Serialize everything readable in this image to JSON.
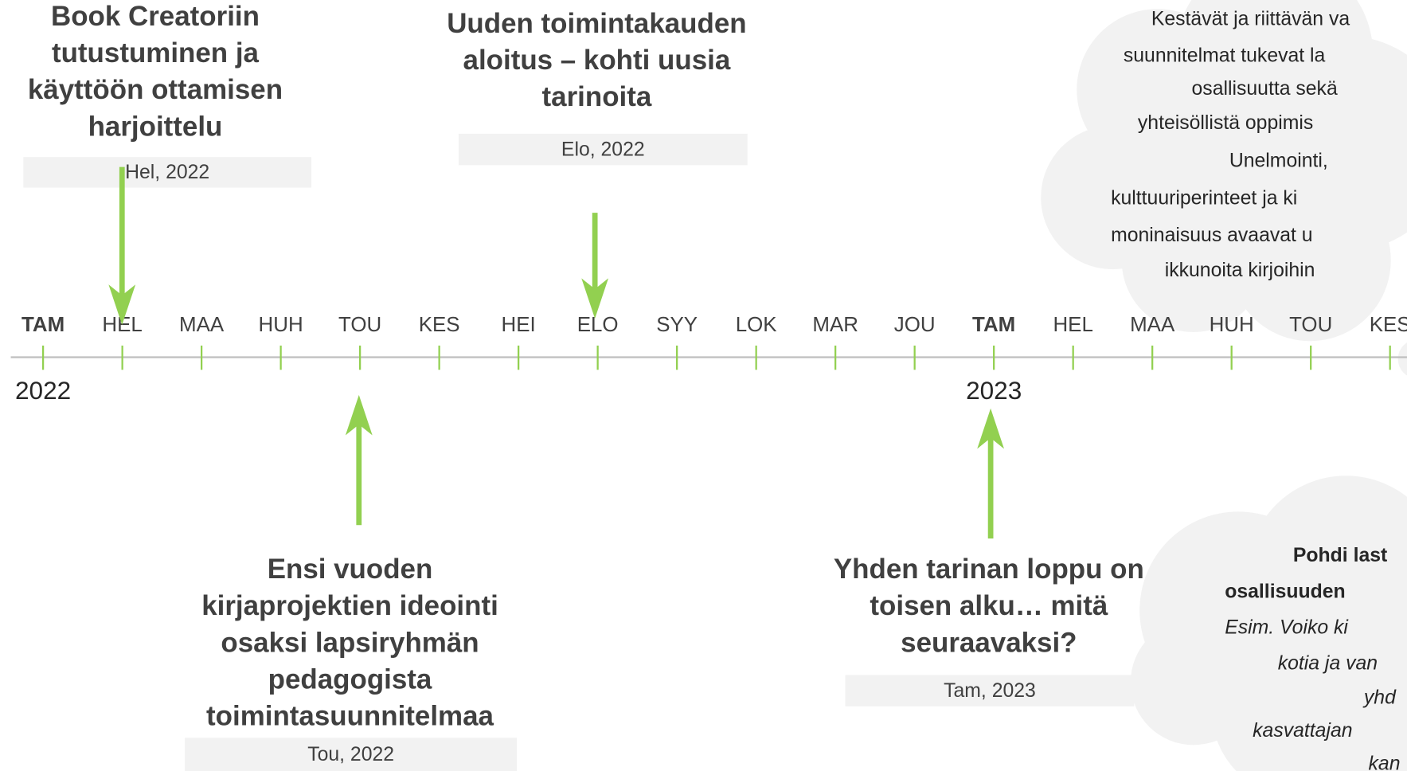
{
  "months": [
    "TAM",
    "HEL",
    "MAA",
    "HUH",
    "TOU",
    "KES",
    "HEI",
    "ELO",
    "SYY",
    "LOK",
    "MAR",
    "JOU",
    "TAM",
    "HEL",
    "MAA",
    "HUH",
    "TOU",
    "KES"
  ],
  "years": [
    "2022",
    "2023"
  ],
  "events": [
    {
      "title": [
        "Book Creatoriin",
        "tutustuminen ja",
        "käyttöön ottamisen",
        "harjoittelu"
      ],
      "date": "Hel, 2022"
    },
    {
      "title": [
        "Uuden toimintakauden",
        "aloitus – kohti uusia",
        "tarinoita"
      ],
      "date": "Elo, 2022"
    },
    {
      "title": [
        "Ensi vuoden",
        "kirjaprojektien ideointi",
        "osaksi lapsiryhmän",
        "pedagogista",
        "toimintasuunnitelmaa"
      ],
      "date": "Tou, 2022"
    },
    {
      "title": [
        "Yhden tarinan loppu on",
        "toisen alku… mitä",
        "seuraavaksi?"
      ],
      "date": "Tam, 2023"
    }
  ],
  "clouds": [
    {
      "lines": [
        "Kestävät ja riittävän va",
        "suunnitelmat tukevat la",
        "osallisuutta sekä",
        "yhteisöllistä oppimis",
        "Unelmointi,",
        "kulttuuriperinteet ja ki",
        "moninaisuus avaavat u",
        "ikkunoita kirjoihin"
      ]
    },
    {
      "heading": [
        "Pohdi last",
        "osallisuuden"
      ],
      "lines": [
        "Esim. Voiko ki",
        "kotia ja van",
        "yhd",
        "kasvattajan",
        "kan"
      ]
    }
  ]
}
